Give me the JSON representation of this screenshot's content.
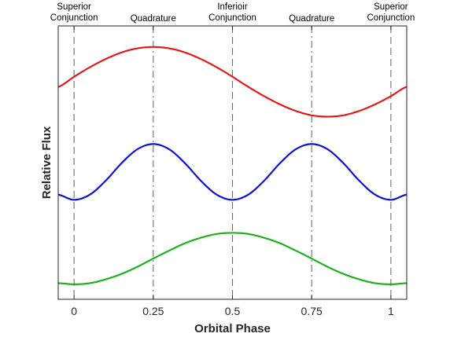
{
  "chart_data": {
    "type": "line",
    "title": "",
    "xlabel": "Orbital Phase",
    "ylabel": "Relative Flux",
    "xlim": [
      -0.05,
      1.05
    ],
    "ylim": [
      0,
      1
    ],
    "x_ticks": [
      0,
      0.25,
      0.5,
      0.75,
      1
    ],
    "x_tick_labels": [
      "0",
      "0.25",
      "0.5",
      "0.75",
      "1"
    ],
    "y_ticks_shown": false,
    "grid": false,
    "legend": "none",
    "phase_markers": [
      {
        "x": 0,
        "style": "dash",
        "label": [
          "Superior",
          "Conjunction"
        ]
      },
      {
        "x": 0.25,
        "style": "dashdot",
        "label": [
          "Quadrature"
        ]
      },
      {
        "x": 0.5,
        "style": "dash",
        "label": [
          "Inferioir",
          "Conjunction"
        ]
      },
      {
        "x": 0.75,
        "style": "dashdot",
        "label": [
          "Quadrature"
        ]
      },
      {
        "x": 1,
        "style": "dash",
        "label": [
          "Superior",
          "Conjunction"
        ]
      }
    ],
    "series": [
      {
        "color": "#e31a1c",
        "x": [
          -0.05,
          0,
          0.05,
          0.1,
          0.15,
          0.2,
          0.25,
          0.3,
          0.35,
          0.4,
          0.45,
          0.5,
          0.55,
          0.6,
          0.65,
          0.7,
          0.75,
          0.8,
          0.85,
          0.9,
          0.95,
          1,
          1.05
        ],
        "y": [
          0.777,
          0.814,
          0.849,
          0.879,
          0.903,
          0.918,
          0.923,
          0.918,
          0.903,
          0.879,
          0.849,
          0.814,
          0.777,
          0.743,
          0.713,
          0.689,
          0.673,
          0.668,
          0.673,
          0.689,
          0.713,
          0.743,
          0.777
        ]
      },
      {
        "color": "#0a14d2",
        "x": [
          -0.05,
          0,
          0.05,
          0.1,
          0.15,
          0.2,
          0.25,
          0.3,
          0.35,
          0.4,
          0.45,
          0.5,
          0.55,
          0.6,
          0.65,
          0.7,
          0.75,
          0.8,
          0.85,
          0.9,
          0.95,
          1,
          1.05
        ],
        "y": [
          0.383,
          0.364,
          0.383,
          0.434,
          0.498,
          0.549,
          0.568,
          0.549,
          0.498,
          0.434,
          0.383,
          0.364,
          0.383,
          0.434,
          0.498,
          0.549,
          0.568,
          0.549,
          0.498,
          0.434,
          0.383,
          0.364,
          0.383
        ]
      },
      {
        "color": "#1fb01f",
        "x": [
          -0.05,
          0,
          0.05,
          0.1,
          0.15,
          0.2,
          0.25,
          0.3,
          0.35,
          0.4,
          0.45,
          0.5,
          0.55,
          0.6,
          0.65,
          0.7,
          0.75,
          0.8,
          0.85,
          0.9,
          0.95,
          1,
          1.05
        ],
        "y": [
          0.059,
          0.055,
          0.059,
          0.073,
          0.093,
          0.119,
          0.149,
          0.178,
          0.205,
          0.225,
          0.239,
          0.243,
          0.239,
          0.225,
          0.205,
          0.178,
          0.149,
          0.119,
          0.093,
          0.073,
          0.059,
          0.055,
          0.059
        ]
      }
    ]
  }
}
